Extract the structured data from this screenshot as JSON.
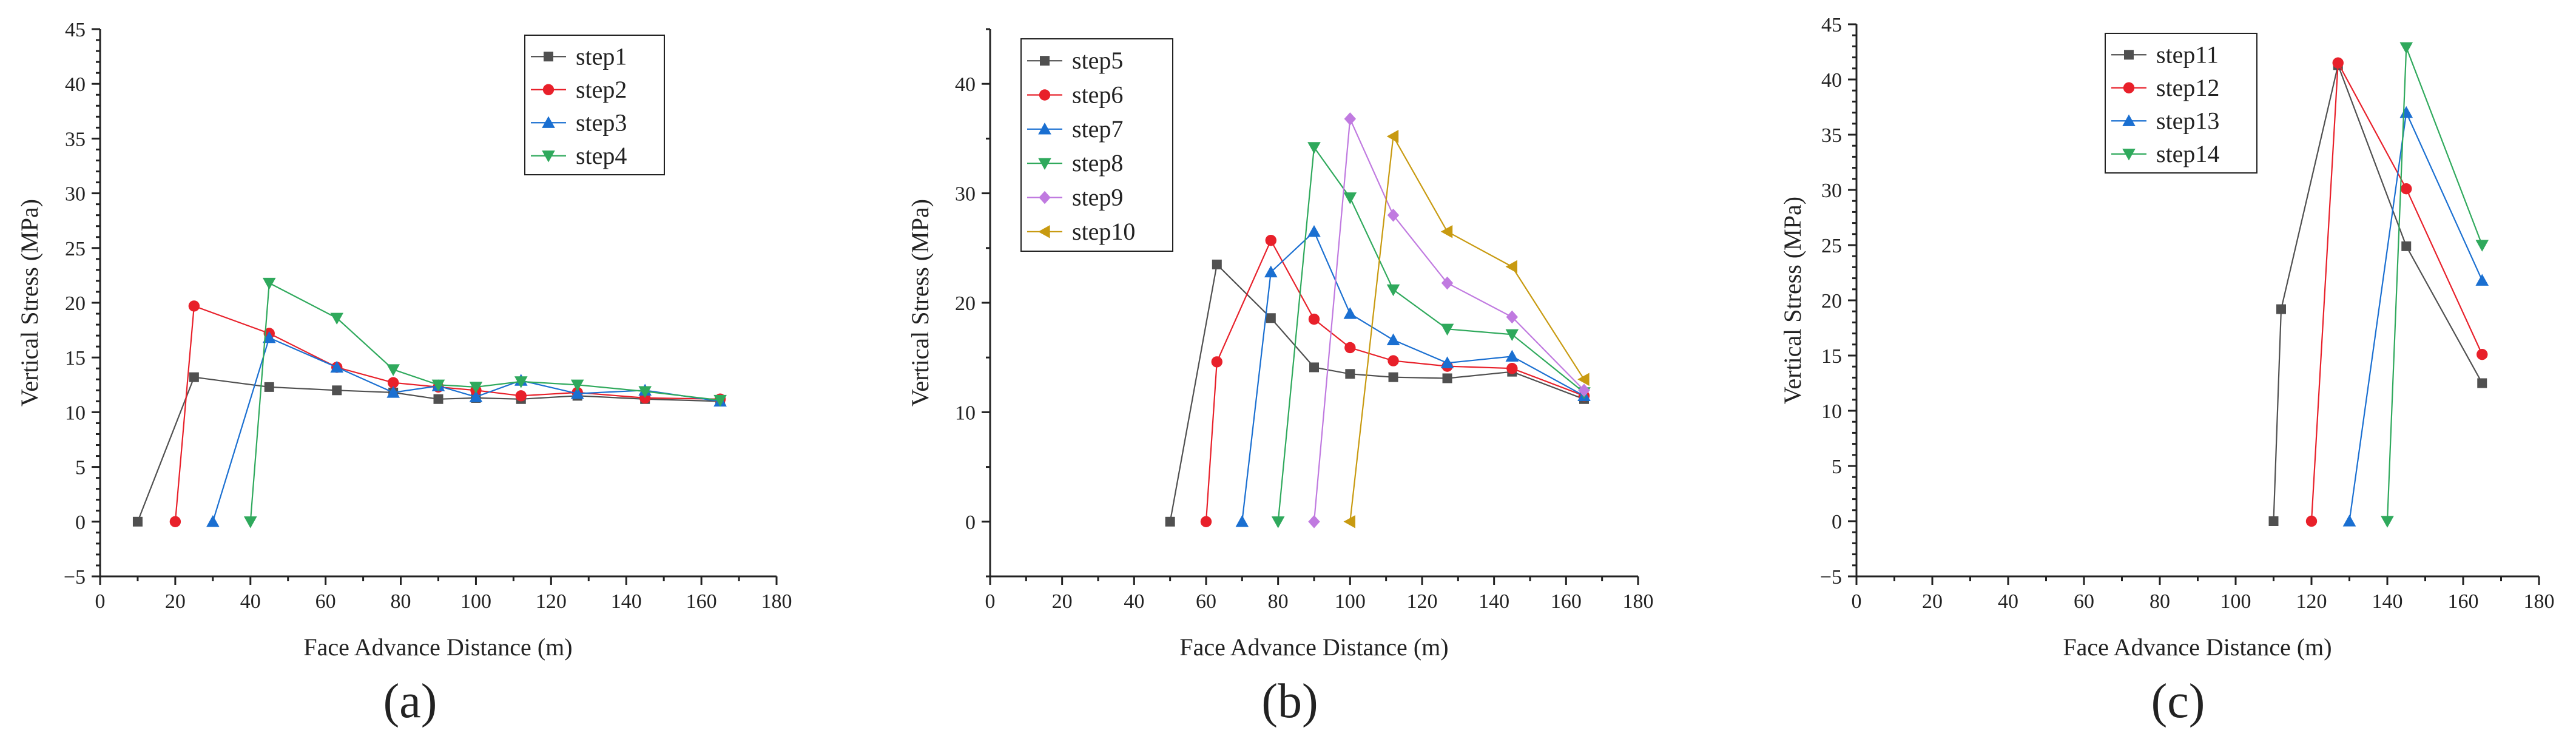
{
  "chart_data": [
    {
      "type": "line",
      "panel_label": "(a)",
      "xlabel": "Face Advance Distance (m)",
      "ylabel": "Vertical Stress (MPa)",
      "xlim": [
        0,
        180
      ],
      "ylim": [
        -5,
        45
      ],
      "xticks": [
        "0",
        "20",
        "40",
        "60",
        "80",
        "100",
        "120",
        "140",
        "160",
        "180"
      ],
      "yticks": [
        "−5",
        "0",
        "5",
        "10",
        "15",
        "20",
        "25",
        "30",
        "35",
        "40",
        "45"
      ],
      "legend_position": "top-right",
      "series": [
        {
          "name": "step1",
          "color": "#505050",
          "marker": "square",
          "x": [
            10,
            25,
            45,
            63,
            78,
            90,
            100,
            112,
            127,
            145,
            165
          ],
          "y": [
            0,
            13.2,
            12.3,
            12.0,
            11.8,
            11.2,
            11.3,
            11.2,
            11.5,
            11.2,
            11.0
          ]
        },
        {
          "name": "step2",
          "color": "#e8202a",
          "marker": "circle",
          "x": [
            20,
            25,
            45,
            63,
            78,
            90,
            100,
            112,
            127,
            145,
            165
          ],
          "y": [
            0,
            19.7,
            17.2,
            14.1,
            12.7,
            12.3,
            12.0,
            11.5,
            11.8,
            11.3,
            11.2
          ]
        },
        {
          "name": "step3",
          "color": "#1a6fd1",
          "marker": "triangle-up",
          "x": [
            30,
            45,
            63,
            78,
            90,
            100,
            112,
            127,
            145,
            165
          ],
          "y": [
            0,
            16.8,
            14.1,
            11.8,
            12.4,
            11.4,
            12.9,
            11.7,
            12.0,
            11.0
          ]
        },
        {
          "name": "step4",
          "color": "#2fa95c",
          "marker": "triangle-down",
          "x": [
            40,
            45,
            63,
            78,
            90,
            100,
            112,
            127,
            145,
            165
          ],
          "y": [
            0,
            21.8,
            18.6,
            13.9,
            12.5,
            12.3,
            12.8,
            12.5,
            11.9,
            11.1
          ]
        }
      ]
    },
    {
      "type": "line",
      "panel_label": "(b)",
      "xlabel": "Face Advance Distance (m)",
      "ylabel": "Vertical Stress (MPa)",
      "xlim": [
        0,
        180
      ],
      "ylim": [
        -5,
        45
      ],
      "xticks": [
        "0",
        "20",
        "40",
        "60",
        "80",
        "100",
        "120",
        "140",
        "160",
        "180"
      ],
      "yticks": [
        "0",
        "10",
        "20",
        "30",
        "40"
      ],
      "legend_position": "top-left",
      "series": [
        {
          "name": "step5",
          "color": "#505050",
          "marker": "square",
          "x": [
            50,
            63,
            78,
            90,
            100,
            112,
            127,
            145,
            165
          ],
          "y": [
            0,
            23.5,
            18.6,
            14.1,
            13.5,
            13.2,
            13.1,
            13.7,
            11.2
          ]
        },
        {
          "name": "step6",
          "color": "#e8202a",
          "marker": "circle",
          "x": [
            60,
            63,
            78,
            90,
            100,
            112,
            127,
            145,
            165
          ],
          "y": [
            0,
            14.6,
            25.7,
            18.5,
            15.9,
            14.7,
            14.2,
            14.0,
            11.5
          ]
        },
        {
          "name": "step7",
          "color": "#1a6fd1",
          "marker": "triangle-up",
          "x": [
            70,
            78,
            90,
            100,
            112,
            127,
            145,
            165
          ],
          "y": [
            0,
            22.8,
            26.5,
            19.0,
            16.6,
            14.5,
            15.1,
            11.5
          ]
        },
        {
          "name": "step8",
          "color": "#2fa95c",
          "marker": "triangle-down",
          "x": [
            80,
            90,
            100,
            112,
            127,
            145,
            165
          ],
          "y": [
            0,
            34.2,
            29.6,
            21.2,
            17.6,
            17.1,
            11.8
          ]
        },
        {
          "name": "step9",
          "color": "#c07ae0",
          "marker": "diamond",
          "x": [
            90,
            100,
            112,
            127,
            145,
            165
          ],
          "y": [
            0,
            36.8,
            28.0,
            21.8,
            18.7,
            12.0
          ]
        },
        {
          "name": "step10",
          "color": "#c89a10",
          "marker": "triangle-left",
          "x": [
            100,
            112,
            127,
            145,
            165
          ],
          "y": [
            0,
            35.2,
            26.5,
            23.3,
            13.0
          ]
        }
      ]
    },
    {
      "type": "line",
      "panel_label": "(c)",
      "xlabel": "Face Advance Distance (m)",
      "ylabel": "Vertical Stress (MPa)",
      "xlim": [
        0,
        180
      ],
      "ylim": [
        -5,
        45
      ],
      "xticks": [
        "0",
        "20",
        "40",
        "60",
        "80",
        "100",
        "120",
        "140",
        "160",
        "180"
      ],
      "yticks": [
        "−5",
        "0",
        "5",
        "10",
        "15",
        "20",
        "25",
        "30",
        "35",
        "40",
        "45"
      ],
      "legend_position": "top-left",
      "series": [
        {
          "name": "step11",
          "color": "#505050",
          "marker": "square",
          "x": [
            110,
            112,
            127,
            145,
            165
          ],
          "y": [
            0,
            19.2,
            41.3,
            24.9,
            12.5
          ]
        },
        {
          "name": "step12",
          "color": "#e8202a",
          "marker": "circle",
          "x": [
            120,
            127,
            145,
            165
          ],
          "y": [
            0,
            41.5,
            30.1,
            15.1
          ]
        },
        {
          "name": "step13",
          "color": "#1a6fd1",
          "marker": "triangle-up",
          "x": [
            130,
            145,
            165
          ],
          "y": [
            0,
            37.0,
            21.8
          ]
        },
        {
          "name": "step14",
          "color": "#2fa95c",
          "marker": "triangle-down",
          "x": [
            140,
            145,
            165
          ],
          "y": [
            0,
            42.9,
            25.0
          ]
        }
      ]
    }
  ]
}
